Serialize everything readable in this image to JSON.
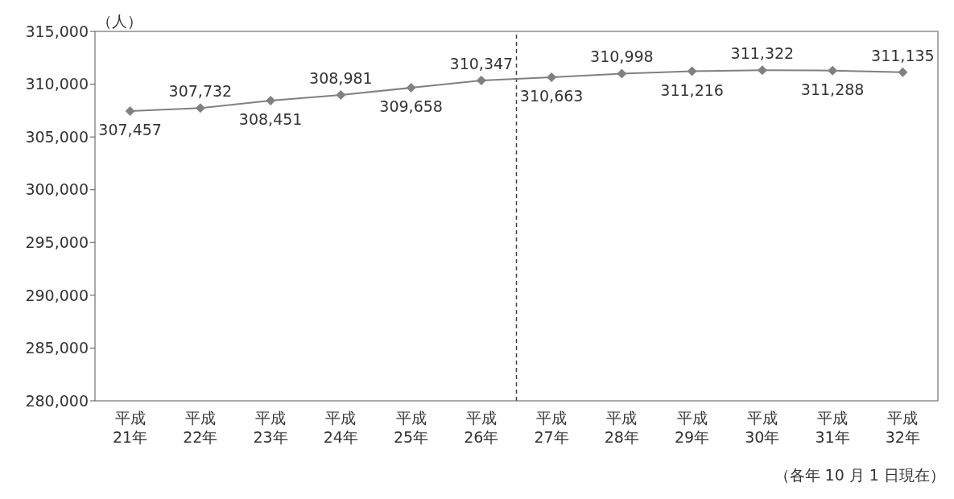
{
  "chart_data": {
    "type": "line",
    "ylabel": "（人）",
    "annotations": [
      "（各年 10 月 1 日現在）"
    ],
    "categories": [
      "平成\n21年",
      "平成\n22年",
      "平成\n23年",
      "平成\n24年",
      "平成\n25年",
      "平成\n26年",
      "平成\n27年",
      "平成\n28年",
      "平成\n29年",
      "平成\n30年",
      "平成\n31年",
      "平成\n32年"
    ],
    "series": [
      {
        "color": "#808080",
        "values": [
          307457,
          307732,
          308451,
          308981,
          309658,
          310347,
          310663,
          310998,
          311216,
          311322,
          311288,
          311135
        ],
        "value_labels": [
          "307,457",
          "307,732",
          "308,451",
          "308,981",
          "309,658",
          "310,347",
          "310,663",
          "310,998",
          "311,216",
          "311,322",
          "311,288",
          "311,135"
        ]
      }
    ],
    "ylim": [
      280000,
      315000
    ],
    "yticks": [
      {
        "value": 280000,
        "label": "280,000"
      },
      {
        "value": 285000,
        "label": "285,000"
      },
      {
        "value": 290000,
        "label": "290,000"
      },
      {
        "value": 295000,
        "label": "295,000"
      },
      {
        "value": 300000,
        "label": "300,000"
      },
      {
        "value": 305000,
        "label": "305,000"
      },
      {
        "value": 310000,
        "label": "310,000"
      },
      {
        "value": 315000,
        "label": "315,000"
      }
    ],
    "marker": "diamond",
    "line_style": "solid"
  }
}
